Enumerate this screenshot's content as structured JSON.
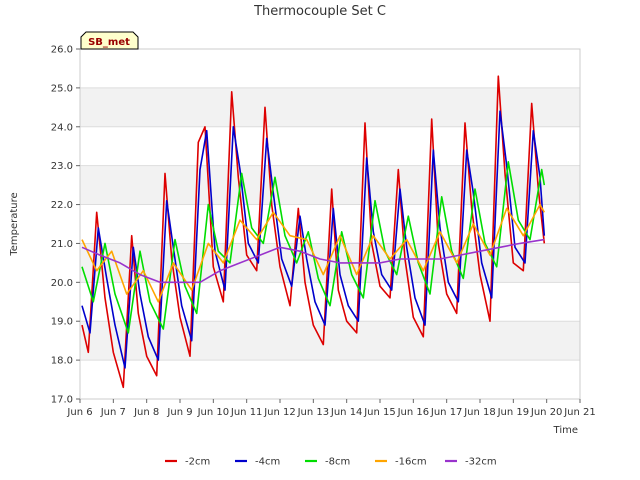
{
  "chart_data": {
    "type": "line",
    "title": "Thermocouple Set C",
    "xlabel": "Time",
    "ylabel": "Temperature",
    "badge": "SB_met",
    "xlim": [
      6,
      21
    ],
    "ylim": [
      17.0,
      26.0
    ],
    "xticks": [
      {
        "value": 6,
        "label": "Jun 6"
      },
      {
        "value": 7,
        "label": "Jun 7"
      },
      {
        "value": 8,
        "label": "Jun 8"
      },
      {
        "value": 9,
        "label": "Jun 9"
      },
      {
        "value": 10,
        "label": "Jun 10"
      },
      {
        "value": 11,
        "label": "Jun 11"
      },
      {
        "value": 12,
        "label": "Jun 12"
      },
      {
        "value": 13,
        "label": "Jun 13"
      },
      {
        "value": 14,
        "label": "Jun 14"
      },
      {
        "value": 15,
        "label": "Jun 15"
      },
      {
        "value": 16,
        "label": "Jun 16"
      },
      {
        "value": 17,
        "label": "Jun 17"
      },
      {
        "value": 18,
        "label": "Jun 18"
      },
      {
        "value": 19,
        "label": "Jun 19"
      },
      {
        "value": 20,
        "label": "Jun 20"
      },
      {
        "value": 21,
        "label": "Jun 21"
      }
    ],
    "yticks": [
      {
        "value": 17,
        "label": "17.0"
      },
      {
        "value": 18,
        "label": "18.0"
      },
      {
        "value": 19,
        "label": "19.0"
      },
      {
        "value": 20,
        "label": "20.0"
      },
      {
        "value": 21,
        "label": "21.0"
      },
      {
        "value": 22,
        "label": "22.0"
      },
      {
        "value": 23,
        "label": "23.0"
      },
      {
        "value": 24,
        "label": "24.0"
      },
      {
        "value": 25,
        "label": "25.0"
      },
      {
        "value": 26,
        "label": "26.0"
      }
    ],
    "grid": true,
    "band_colors": [
      "#ffffff",
      "#f2f2f2"
    ],
    "legend_position": "bottom",
    "series": [
      {
        "name": "-2cm",
        "color": "#dd0000",
        "x": [
          6.06,
          6.25,
          6.5,
          6.75,
          7.0,
          7.3,
          7.55,
          7.75,
          8.0,
          8.3,
          8.55,
          8.75,
          9.0,
          9.3,
          9.55,
          9.75,
          10.0,
          10.3,
          10.55,
          10.75,
          11.0,
          11.3,
          11.55,
          11.75,
          12.0,
          12.3,
          12.55,
          12.75,
          13.0,
          13.3,
          13.55,
          13.75,
          14.0,
          14.3,
          14.55,
          14.75,
          15.0,
          15.3,
          15.55,
          15.75,
          16.0,
          16.3,
          16.55,
          16.75,
          17.0,
          17.3,
          17.55,
          17.75,
          18.0,
          18.3,
          18.55,
          18.75,
          19.0,
          19.3,
          19.55,
          19.75,
          19.93
        ],
        "y": [
          18.9,
          18.2,
          21.8,
          19.6,
          18.2,
          17.3,
          21.2,
          19.2,
          18.1,
          17.6,
          22.8,
          20.6,
          19.1,
          18.1,
          23.6,
          24.0,
          20.4,
          19.5,
          24.9,
          22.7,
          20.7,
          20.3,
          24.5,
          22.0,
          20.4,
          19.4,
          21.9,
          20.0,
          18.9,
          18.4,
          22.4,
          19.8,
          19.0,
          18.7,
          24.1,
          21.0,
          19.9,
          19.6,
          22.9,
          20.6,
          19.1,
          18.6,
          24.2,
          21.0,
          19.7,
          19.2,
          24.1,
          21.9,
          20.2,
          19.0,
          25.3,
          22.8,
          20.5,
          20.3,
          24.6,
          22.4,
          21.0
        ]
      },
      {
        "name": "-4cm",
        "color": "#0000cc",
        "x": [
          6.06,
          6.3,
          6.55,
          6.8,
          7.05,
          7.35,
          7.6,
          7.8,
          8.05,
          8.35,
          8.6,
          8.8,
          9.05,
          9.35,
          9.6,
          9.8,
          10.05,
          10.35,
          10.6,
          10.8,
          11.05,
          11.35,
          11.6,
          11.8,
          12.05,
          12.35,
          12.6,
          12.8,
          13.05,
          13.35,
          13.6,
          13.8,
          14.05,
          14.35,
          14.6,
          14.8,
          15.05,
          15.35,
          15.6,
          15.8,
          16.05,
          16.35,
          16.6,
          16.8,
          17.05,
          17.35,
          17.6,
          17.8,
          18.05,
          18.35,
          18.6,
          18.8,
          19.05,
          19.35,
          19.6,
          19.8,
          19.93
        ],
        "y": [
          19.4,
          18.7,
          21.4,
          20.1,
          18.9,
          17.8,
          20.9,
          19.7,
          18.6,
          18.0,
          22.1,
          20.9,
          19.4,
          18.5,
          22.9,
          23.9,
          20.8,
          19.8,
          24.0,
          22.9,
          21.0,
          20.5,
          23.7,
          22.3,
          20.6,
          19.9,
          21.7,
          20.6,
          19.5,
          18.9,
          21.9,
          20.2,
          19.4,
          19.0,
          23.2,
          21.3,
          20.2,
          19.8,
          22.4,
          20.9,
          19.6,
          18.9,
          23.4,
          21.4,
          20.0,
          19.5,
          23.4,
          22.3,
          20.5,
          19.6,
          24.4,
          23.0,
          20.9,
          20.5,
          23.9,
          22.7,
          21.2
        ]
      },
      {
        "name": "-8cm",
        "color": "#00dd00",
        "x": [
          6.06,
          6.4,
          6.75,
          7.05,
          7.45,
          7.8,
          8.1,
          8.5,
          8.85,
          9.15,
          9.5,
          9.85,
          10.15,
          10.5,
          10.85,
          11.15,
          11.5,
          11.85,
          12.15,
          12.5,
          12.85,
          13.15,
          13.5,
          13.85,
          14.15,
          14.5,
          14.85,
          15.15,
          15.5,
          15.85,
          16.15,
          16.5,
          16.85,
          17.15,
          17.5,
          17.85,
          18.15,
          18.5,
          18.85,
          19.15,
          19.5,
          19.85,
          19.93
        ],
        "y": [
          20.4,
          19.5,
          21.0,
          19.7,
          18.7,
          20.8,
          19.5,
          18.8,
          21.1,
          19.9,
          19.2,
          22.0,
          20.8,
          20.5,
          22.8,
          21.4,
          21.0,
          22.7,
          21.2,
          20.5,
          21.3,
          20.1,
          19.4,
          21.3,
          20.2,
          19.6,
          22.1,
          20.8,
          20.2,
          21.7,
          20.5,
          19.7,
          22.2,
          20.8,
          20.1,
          22.4,
          21.0,
          20.4,
          23.1,
          21.6,
          21.1,
          22.9,
          22.5
        ]
      },
      {
        "name": "-16cm",
        "color": "#ffa500",
        "x": [
          6.06,
          6.5,
          6.95,
          7.4,
          7.9,
          8.35,
          8.8,
          9.35,
          9.85,
          10.3,
          10.8,
          11.3,
          11.8,
          12.3,
          12.8,
          13.3,
          13.8,
          14.3,
          14.8,
          15.3,
          15.8,
          16.3,
          16.8,
          17.3,
          17.8,
          18.3,
          18.8,
          19.3,
          19.8,
          19.93
        ],
        "y": [
          21.1,
          20.3,
          20.8,
          19.7,
          20.3,
          19.5,
          20.5,
          19.8,
          21.0,
          20.5,
          21.6,
          21.1,
          21.8,
          21.2,
          21.1,
          20.2,
          21.2,
          20.2,
          21.2,
          20.6,
          21.1,
          20.3,
          21.3,
          20.5,
          21.5,
          20.7,
          21.9,
          21.2,
          22.0,
          21.8
        ]
      },
      {
        "name": "-32cm",
        "color": "#9933cc",
        "x": [
          6.06,
          6.6,
          7.2,
          7.8,
          8.4,
          9.0,
          9.6,
          10.2,
          10.8,
          11.4,
          12.0,
          12.6,
          13.2,
          13.8,
          14.4,
          15.0,
          15.6,
          16.2,
          16.8,
          17.4,
          18.0,
          18.6,
          19.2,
          19.93
        ],
        "y": [
          20.9,
          20.7,
          20.5,
          20.2,
          20.0,
          20.0,
          20.0,
          20.3,
          20.5,
          20.7,
          20.9,
          20.8,
          20.6,
          20.5,
          20.5,
          20.5,
          20.6,
          20.6,
          20.6,
          20.7,
          20.8,
          20.9,
          21.0,
          21.1
        ]
      }
    ]
  }
}
